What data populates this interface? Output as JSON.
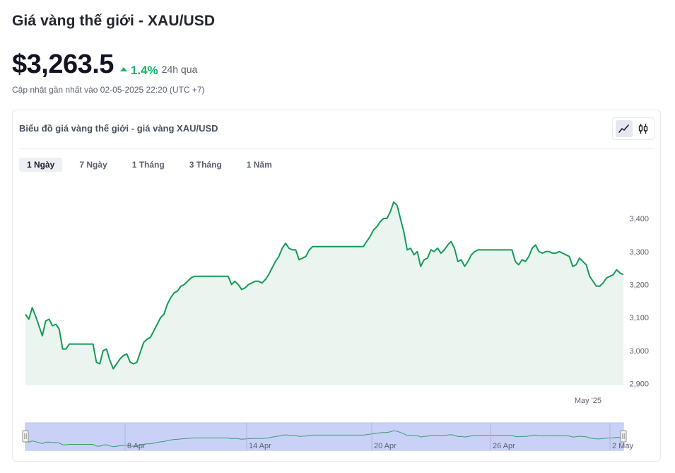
{
  "header": {
    "title": "Giá vàng thế giới - XAU/USD",
    "price": "$3,263.5",
    "change": "1.4%",
    "period": "24h qua",
    "updated": "Cập nhật gần nhất vào 02-05-2025 22:20 (UTC +7)"
  },
  "card": {
    "title": "Biểu đồ giá vàng thế giới - giá vàng XAU/USD",
    "tabs": [
      {
        "label": "1 Ngày",
        "active": true
      },
      {
        "label": "7 Ngày",
        "active": false
      },
      {
        "label": "1 Tháng",
        "active": false
      },
      {
        "label": "3 Tháng",
        "active": false
      },
      {
        "label": "1 Năm",
        "active": false
      }
    ],
    "toggle_icons": [
      "line-chart-icon",
      "candlestick-icon"
    ]
  },
  "colors": {
    "line": "#159a55",
    "area": "#eaf5ef",
    "up": "#16b26a",
    "navigator_fill": "#c9d2f6"
  },
  "chart_data": {
    "type": "area",
    "series": [
      {
        "values": [
          3110,
          3095,
          3130,
          3105,
          3075,
          3045,
          3090,
          3095,
          3075,
          3080,
          3065,
          3005,
          3005,
          3020,
          3020,
          3020,
          3020,
          3020,
          3020,
          3020,
          3020,
          2965,
          2960,
          3000,
          3005,
          2970,
          2945,
          2960,
          2975,
          2985,
          2990,
          2965,
          2960,
          2965,
          2995,
          3025,
          3035,
          3040,
          3060,
          3080,
          3100,
          3110,
          3140,
          3160,
          3175,
          3180,
          3195,
          3200,
          3210,
          3220,
          3225,
          3225,
          3225,
          3225,
          3225,
          3225,
          3225,
          3225,
          3225,
          3225,
          3225,
          3200,
          3210,
          3200,
          3185,
          3190,
          3200,
          3205,
          3210,
          3210,
          3205,
          3215,
          3230,
          3250,
          3270,
          3285,
          3310,
          3325,
          3310,
          3305,
          3305,
          3275,
          3280,
          3285,
          3305,
          3315,
          3315,
          3315,
          3315,
          3315,
          3315,
          3315,
          3315,
          3315,
          3315,
          3315,
          3315,
          3315,
          3315,
          3315,
          3315,
          3330,
          3345,
          3365,
          3375,
          3390,
          3400,
          3400,
          3420,
          3450,
          3440,
          3400,
          3360,
          3305,
          3310,
          3290,
          3300,
          3255,
          3275,
          3280,
          3305,
          3300,
          3310,
          3295,
          3305,
          3320,
          3330,
          3310,
          3270,
          3275,
          3255,
          3270,
          3290,
          3300,
          3305,
          3305,
          3305,
          3305,
          3305,
          3305,
          3305,
          3305,
          3305,
          3305,
          3305,
          3270,
          3260,
          3275,
          3270,
          3285,
          3310,
          3320,
          3300,
          3295,
          3300,
          3300,
          3295,
          3295,
          3300,
          3295,
          3290,
          3285,
          3255,
          3260,
          3280,
          3270,
          3260,
          3225,
          3210,
          3195,
          3195,
          3205,
          3220,
          3225,
          3230,
          3245,
          3235,
          3230
        ]
      }
    ],
    "x_ticks": [
      "May '25"
    ],
    "y_ticks": [
      "3,400",
      "3,300",
      "3,200",
      "3,100",
      "3,000",
      "2,900"
    ],
    "ylim": [
      2895,
      3460
    ],
    "navigator_ticks": [
      "8 Apr",
      "14 Apr",
      "20 Apr",
      "26 Apr",
      "2 May"
    ],
    "grid": false
  }
}
